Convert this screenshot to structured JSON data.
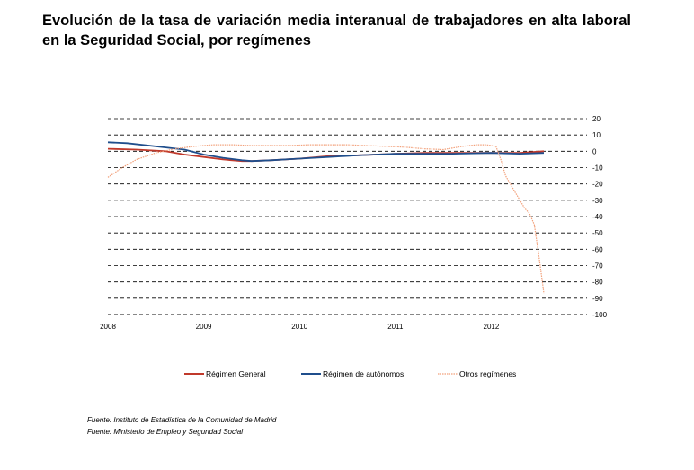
{
  "title": "Evolución de la tasa de variación media interanual de trabajadores en alta laboral en la Seguridad Social, por  regímenes",
  "sources": [
    "Fuente: Instituto de Estadística de la Comunidad de Madrid",
    "Fuente: Ministerio de Empleo y Seguridad Social"
  ],
  "colors": {
    "general": "#c0392b",
    "autonomos": "#1f4e8c",
    "otros": "#f2a07a"
  },
  "chart_data": {
    "type": "line",
    "title": "Evolución de la tasa de variación media interanual de trabajadores en alta laboral en la Seguridad Social, por  regímenes",
    "xlabel": "",
    "ylabel": "",
    "xlim": [
      2008,
      2013
    ],
    "ylim": [
      -100,
      20
    ],
    "x_ticks": [
      "2008",
      "2009",
      "2010",
      "2011",
      "2012"
    ],
    "y_ticks": [
      "20",
      "10",
      "0",
      "-10",
      "-20",
      "-30",
      "-40",
      "-50",
      "-60",
      "-70",
      "-80",
      "-90",
      "-100"
    ],
    "y_tick_values": [
      20,
      10,
      0,
      -10,
      -20,
      -30,
      -40,
      -50,
      -60,
      -70,
      -80,
      -90,
      -100
    ],
    "grid": "horizontal dashed",
    "legend_position": "bottom",
    "series": [
      {
        "name": "Régimen General",
        "color": "#c0392b",
        "x": [
          2008.0,
          2008.3,
          2008.6,
          2008.8,
          2009.0,
          2009.2,
          2009.4,
          2009.5,
          2009.7,
          2010.0,
          2010.3,
          2010.6,
          2011.0,
          2011.3,
          2011.6,
          2012.0,
          2012.3,
          2012.55
        ],
        "y": [
          1.5,
          1.0,
          0.0,
          -2.0,
          -3.5,
          -5.0,
          -6.0,
          -6.0,
          -5.5,
          -4.5,
          -3.0,
          -2.5,
          -1.5,
          -1.0,
          -1.0,
          -1.0,
          -1.0,
          0.0
        ]
      },
      {
        "name": "Régimen de autónomos",
        "color": "#1f4e8c",
        "x": [
          2008.0,
          2008.2,
          2008.5,
          2008.8,
          2009.0,
          2009.2,
          2009.4,
          2009.5,
          2009.7,
          2010.0,
          2010.3,
          2010.6,
          2011.0,
          2011.3,
          2011.6,
          2012.0,
          2012.3,
          2012.55
        ],
        "y": [
          5.5,
          5.0,
          3.0,
          1.0,
          -2.0,
          -4.0,
          -5.5,
          -6.0,
          -5.5,
          -4.5,
          -3.5,
          -2.5,
          -1.5,
          -1.5,
          -1.5,
          -1.0,
          -1.5,
          -1.0
        ]
      },
      {
        "name": "Otros regímenes",
        "color": "#f2a07a",
        "x": [
          2008.0,
          2008.15,
          2008.3,
          2008.5,
          2008.7,
          2008.9,
          2009.1,
          2009.3,
          2009.5,
          2009.7,
          2009.9,
          2010.1,
          2010.3,
          2010.5,
          2010.7,
          2010.9,
          2011.1,
          2011.3,
          2011.5,
          2011.7,
          2011.85,
          2011.95,
          2012.05,
          2012.1,
          2012.15,
          2012.2,
          2012.25,
          2012.3,
          2012.35,
          2012.4,
          2012.45,
          2012.5,
          2012.55
        ],
        "y": [
          -16.0,
          -10.0,
          -5.0,
          -1.0,
          1.5,
          3.0,
          4.0,
          4.0,
          3.5,
          3.5,
          3.5,
          4.0,
          4.0,
          4.0,
          3.5,
          3.0,
          2.5,
          1.5,
          1.0,
          3.0,
          4.0,
          4.0,
          3.0,
          -5.0,
          -15.0,
          -20.0,
          -25.0,
          -30.0,
          -35.0,
          -38.0,
          -45.0,
          -65.0,
          -87.0
        ]
      }
    ]
  }
}
